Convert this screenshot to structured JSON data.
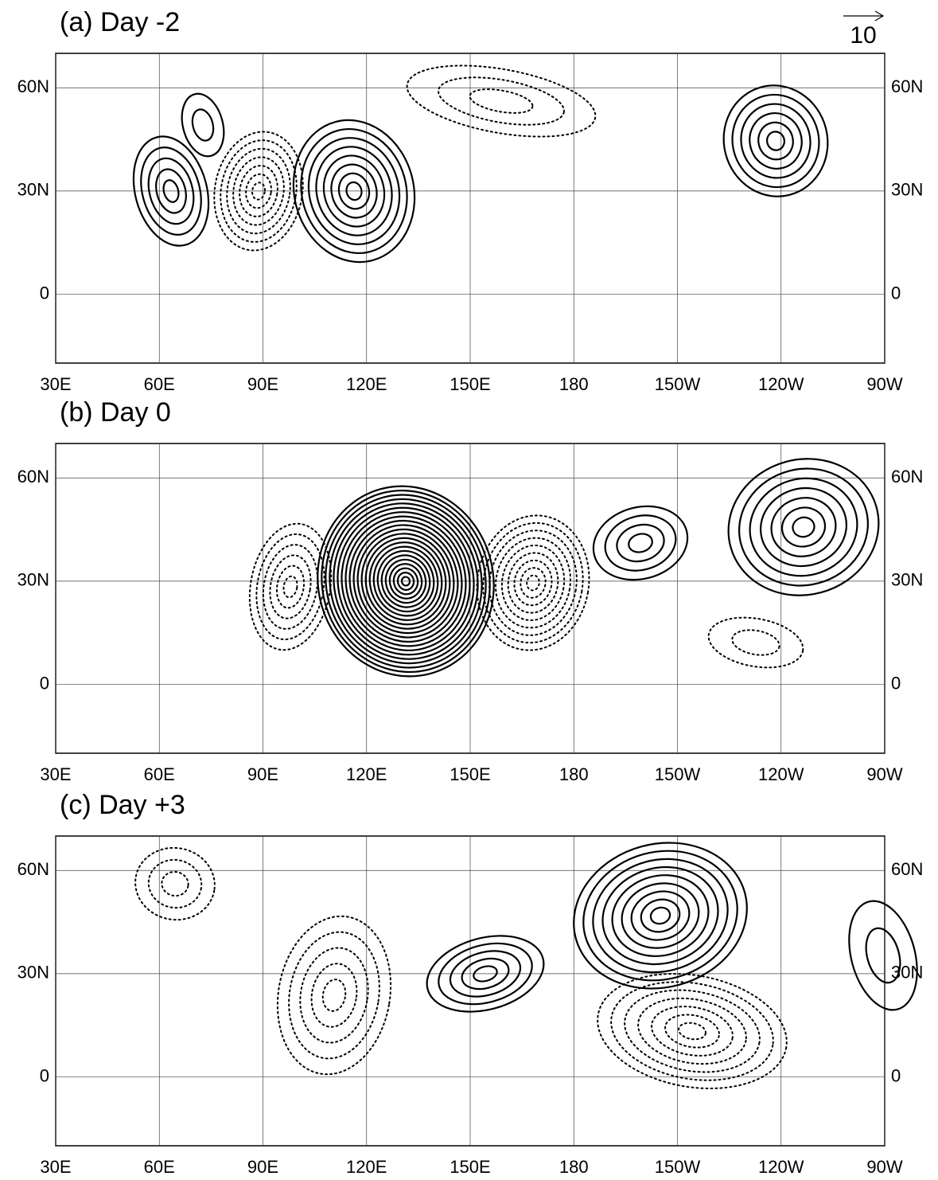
{
  "panels": [
    {
      "title": "(a) Day -2"
    },
    {
      "title": "(b) Day 0"
    },
    {
      "title": "(c) Day +3"
    }
  ],
  "reference_vector": {
    "label": "10"
  },
  "lon_range": [
    30,
    270
  ],
  "lat_range": [
    -20,
    70
  ],
  "lon_ticks": [
    {
      "value": 30,
      "label": "30E"
    },
    {
      "value": 60,
      "label": "60E"
    },
    {
      "value": 90,
      "label": "90E"
    },
    {
      "value": 120,
      "label": "120E"
    },
    {
      "value": 150,
      "label": "150E"
    },
    {
      "value": 180,
      "label": "180"
    },
    {
      "value": 210,
      "label": "150W"
    },
    {
      "value": 240,
      "label": "120W"
    },
    {
      "value": 270,
      "label": "90W"
    }
  ],
  "lat_ticks": [
    {
      "value": 60,
      "label": "60N"
    },
    {
      "value": 30,
      "label": "30N"
    },
    {
      "value": 0,
      "label": "0"
    }
  ]
}
